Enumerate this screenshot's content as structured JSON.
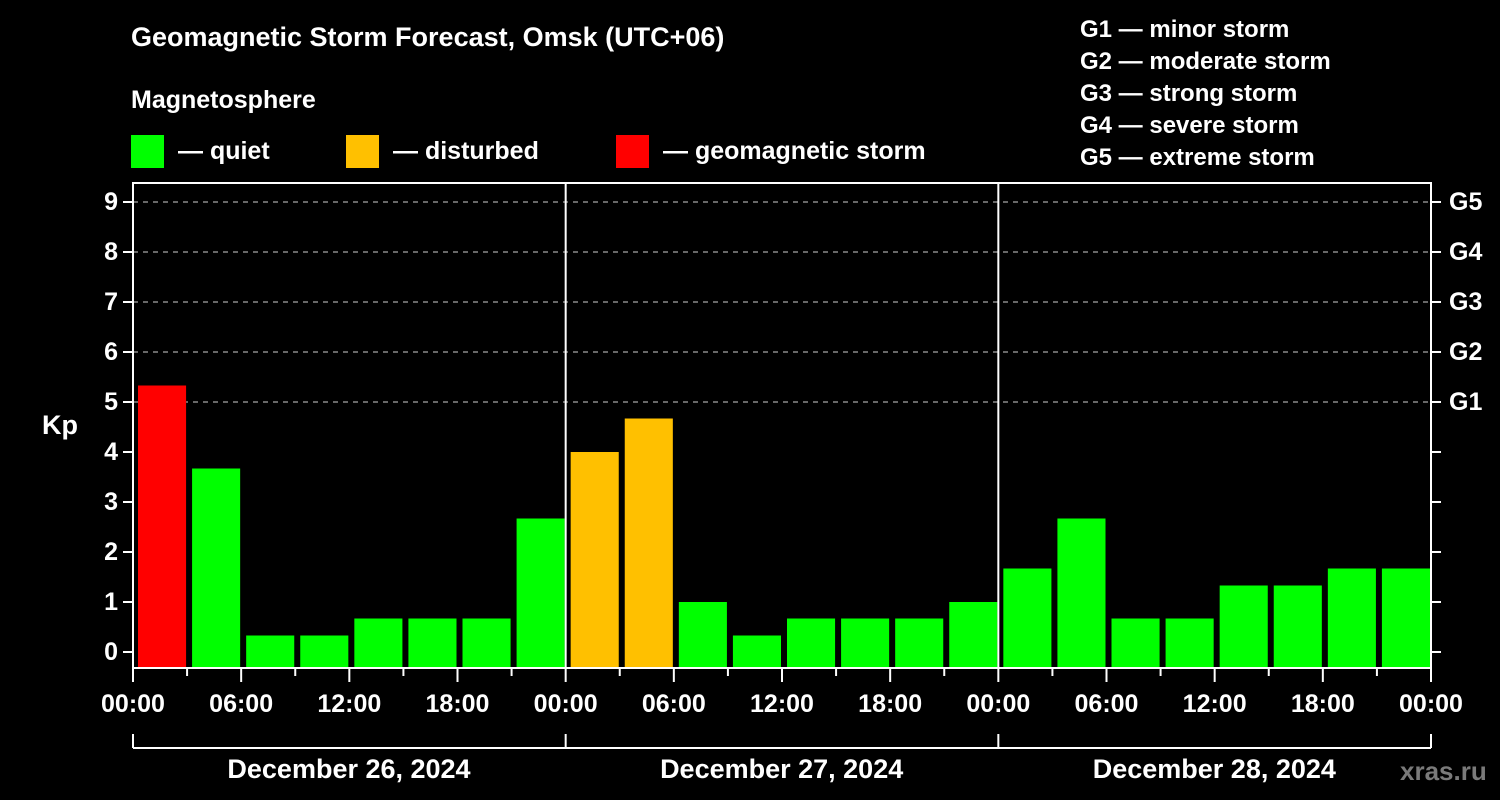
{
  "header": {
    "title": "Geomagnetic Storm Forecast, Omsk (UTC+06)",
    "subtitle": "Magnetosphere"
  },
  "legend": [
    {
      "label": "— quiet",
      "color": "#00ff00"
    },
    {
      "label": "— disturbed",
      "color": "#ffc000"
    },
    {
      "label": "— geomagnetic storm",
      "color": "#ff0000"
    }
  ],
  "storm_scale": [
    "G1 — minor storm",
    "G2 — moderate storm",
    "G3 — strong storm",
    "G4 — severe storm",
    "G5 — extreme storm"
  ],
  "watermark": "xras.ru",
  "chart_data": {
    "type": "bar",
    "title": "Geomagnetic Storm Forecast, Omsk (UTC+06)",
    "ylabel": "Kp",
    "xlabel": "",
    "ylim": [
      -0.33,
      9.6
    ],
    "yticks": [
      "0",
      "1",
      "2",
      "3",
      "4",
      "5",
      "6",
      "7",
      "8",
      "9"
    ],
    "right_axis_labels": [
      {
        "kp": 5,
        "label": "G1"
      },
      {
        "kp": 6,
        "label": "G2"
      },
      {
        "kp": 7,
        "label": "G3"
      },
      {
        "kp": 8,
        "label": "G4"
      },
      {
        "kp": 9,
        "label": "G5"
      }
    ],
    "grid": "dashed horizontal at Kp 5-9",
    "xtick_labels": [
      "00:00",
      "06:00",
      "12:00",
      "18:00",
      "00:00",
      "06:00",
      "12:00",
      "18:00",
      "00:00",
      "06:00",
      "12:00",
      "18:00",
      "00:00"
    ],
    "days": [
      "December 26, 2024",
      "December 27, 2024",
      "December 28, 2024"
    ],
    "interval_hours": 3,
    "categories": [
      "26 00-03",
      "26 03-06",
      "26 06-09",
      "26 09-12",
      "26 12-15",
      "26 15-18",
      "26 18-21",
      "26 21-24",
      "27 00-03",
      "27 03-06",
      "27 06-09",
      "27 09-12",
      "27 12-15",
      "27 15-18",
      "27 18-21",
      "27 21-24",
      "28 00-03",
      "28 03-06",
      "28 06-09",
      "28 09-12",
      "28 12-15",
      "28 15-18",
      "28 18-21",
      "28 21-24"
    ],
    "values": [
      5.33,
      3.67,
      0.33,
      0.33,
      0.67,
      0.67,
      0.67,
      2.67,
      4.0,
      4.67,
      1.0,
      0.33,
      0.67,
      0.67,
      0.67,
      1.0,
      1.67,
      2.67,
      0.67,
      0.67,
      1.33,
      1.33,
      1.67,
      1.67
    ],
    "colors": [
      "#ff0000",
      "#00ff00",
      "#00ff00",
      "#00ff00",
      "#00ff00",
      "#00ff00",
      "#00ff00",
      "#00ff00",
      "#ffc000",
      "#ffc000",
      "#00ff00",
      "#00ff00",
      "#00ff00",
      "#00ff00",
      "#00ff00",
      "#00ff00",
      "#00ff00",
      "#00ff00",
      "#00ff00",
      "#00ff00",
      "#00ff00",
      "#00ff00",
      "#00ff00",
      "#00ff00"
    ],
    "legend": [
      "quiet",
      "disturbed",
      "geomagnetic storm"
    ],
    "legend_position": "top"
  }
}
